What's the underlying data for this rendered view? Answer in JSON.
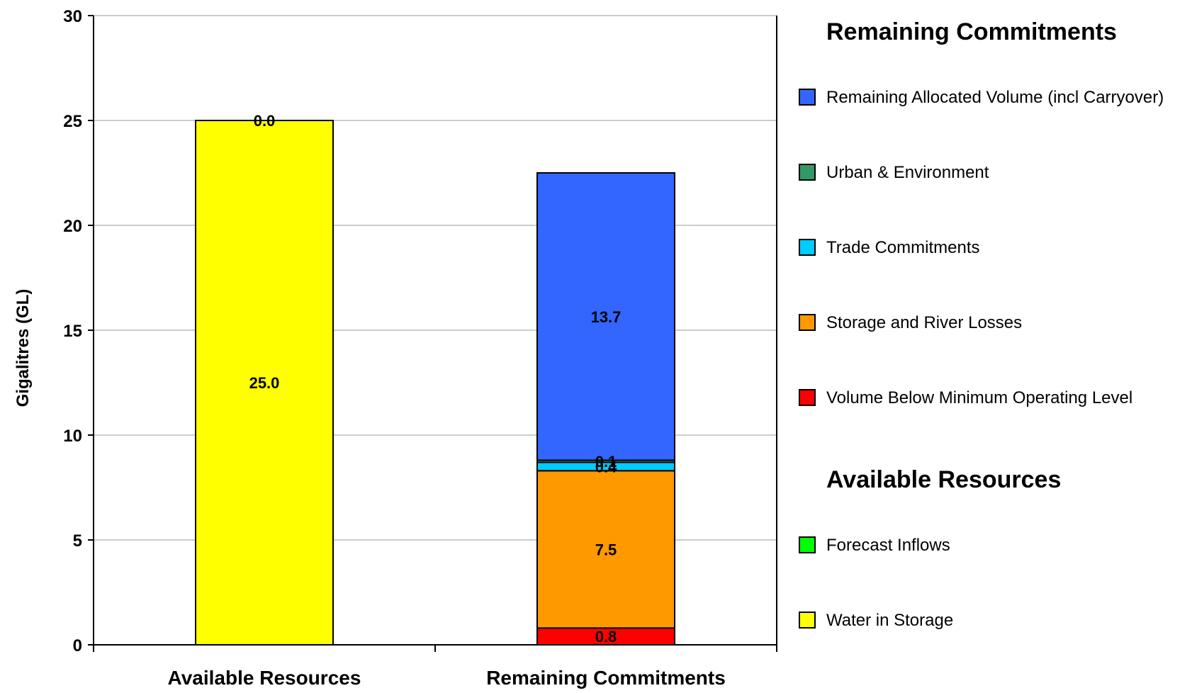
{
  "chart_data": {
    "type": "bar",
    "stacked": true,
    "categories": [
      "Available Resources",
      "Remaining Commitments"
    ],
    "ylabel": "Gigalitres (GL)",
    "ylim": [
      0,
      30
    ],
    "yticks": [
      0,
      5,
      10,
      15,
      20,
      25,
      30
    ],
    "grid": true,
    "legend_position": "right",
    "series": [
      {
        "name": "Water in Storage",
        "group": "Available Resources",
        "color": "#ffff00",
        "values": [
          25.0,
          null
        ],
        "labels": [
          "25.0",
          null
        ]
      },
      {
        "name": "Forecast Inflows",
        "group": "Available Resources",
        "color": "#00ff00",
        "values": [
          0.0,
          null
        ],
        "labels": [
          "0.0",
          null
        ]
      },
      {
        "name": "Volume Below Minimum Operating Level",
        "group": "Remaining Commitments",
        "color": "#ff0000",
        "values": [
          null,
          0.8
        ],
        "labels": [
          null,
          "0.8"
        ]
      },
      {
        "name": "Storage and River Losses",
        "group": "Remaining Commitments",
        "color": "#ff9900",
        "values": [
          null,
          7.5
        ],
        "labels": [
          null,
          "7.5"
        ]
      },
      {
        "name": "Trade Commitments",
        "group": "Remaining Commitments",
        "color": "#00ccff",
        "values": [
          null,
          0.4
        ],
        "labels": [
          null,
          "0.4"
        ]
      },
      {
        "name": "Urban & Environment",
        "group": "Remaining Commitments",
        "color": "#339966",
        "values": [
          null,
          0.1
        ],
        "labels": [
          null,
          "0.1"
        ]
      },
      {
        "name": "Remaining Allocated Volume (incl Carryover)",
        "group": "Remaining Commitments",
        "color": "#3366ff",
        "values": [
          null,
          13.7
        ],
        "labels": [
          null,
          "13.7"
        ]
      }
    ]
  },
  "legend": {
    "groups": [
      {
        "heading": "Remaining Commitments",
        "items": [
          {
            "label": "Remaining Allocated Volume (incl Carryover)",
            "color": "#3366ff"
          },
          {
            "label": "Urban & Environment",
            "color": "#339966"
          },
          {
            "label": "Trade Commitments",
            "color": "#00ccff"
          },
          {
            "label": "Storage and River Losses",
            "color": "#ff9900"
          },
          {
            "label": "Volume Below Minimum Operating Level",
            "color": "#ff0000"
          }
        ]
      },
      {
        "heading": "Available Resources",
        "items": [
          {
            "label": "Forecast Inflows",
            "color": "#00ff00"
          },
          {
            "label": "Water in Storage",
            "color": "#ffff00"
          }
        ]
      }
    ]
  }
}
